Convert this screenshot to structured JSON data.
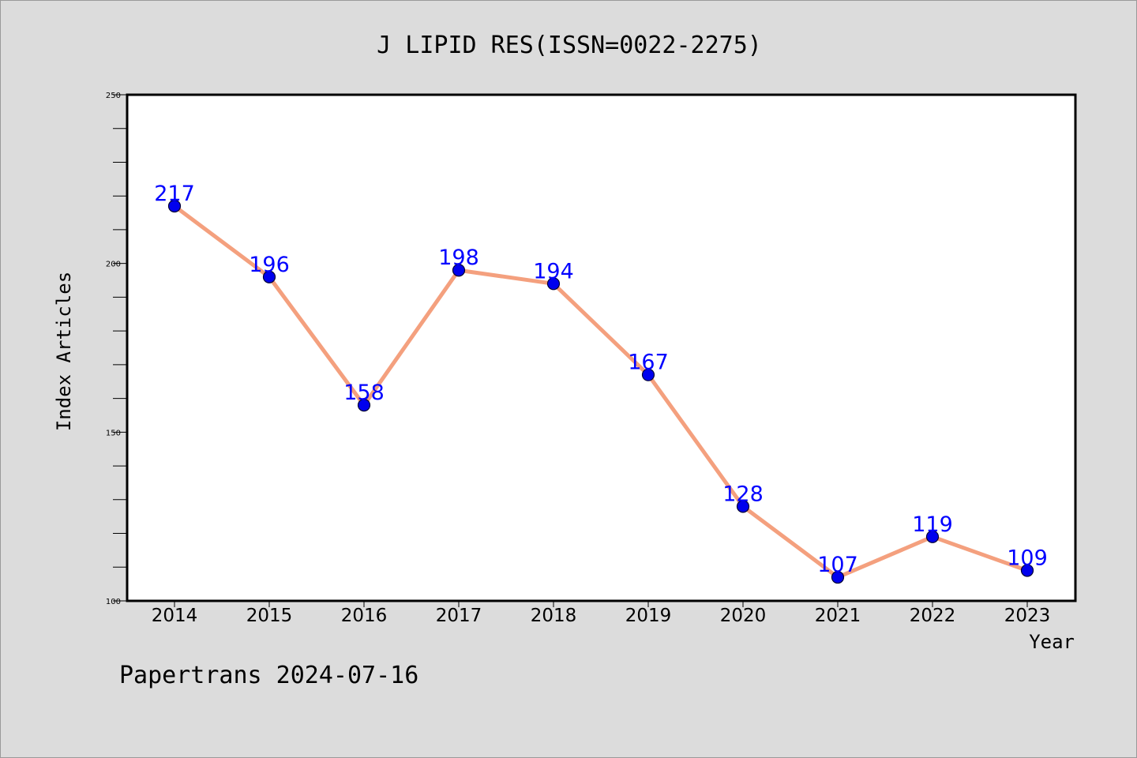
{
  "chart_data": {
    "type": "line",
    "title": "J LIPID RES(ISSN=0022-2275)",
    "xlabel": "Year",
    "ylabel": "Index Articles",
    "categories": [
      "2014",
      "2015",
      "2016",
      "2017",
      "2018",
      "2019",
      "2020",
      "2021",
      "2022",
      "2023"
    ],
    "values": [
      217,
      196,
      158,
      198,
      194,
      167,
      128,
      107,
      119,
      109
    ],
    "data_labels": [
      "217",
      "196",
      "158",
      "198",
      "194",
      "167",
      "128",
      "107",
      "119",
      "109"
    ],
    "ylim": [
      100,
      250
    ],
    "yticks": [
      "100",
      "150",
      "200",
      "250"
    ],
    "grid": false,
    "colors": {
      "line": "#f4a07e",
      "marker": "#0000ee",
      "marker_edge": "#000033",
      "data_label": "#0000ff"
    }
  },
  "footer": {
    "text": "Papertrans 2024-07-16"
  }
}
